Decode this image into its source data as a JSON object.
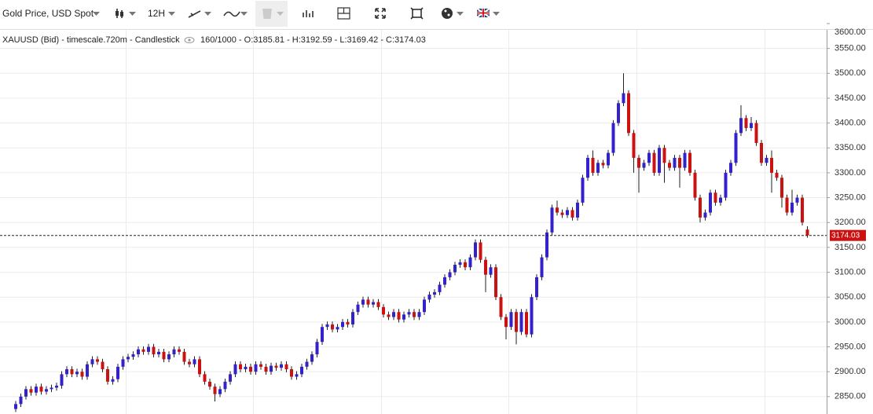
{
  "toolbar": {
    "symbol": "Gold Price, USD Spot",
    "timeframe": "12H"
  },
  "info": {
    "label": "XAUUSD (Bid) - timescale.720m - Candlestick",
    "ohlc": "160/1000 - O:3185.81 - H:3192.59 - L:3169.42 - C:3174.03"
  },
  "chart_data": {
    "type": "candlestick",
    "up_color": "#3322cc",
    "down_color": "#cc1111",
    "wick_color": "#222222",
    "grid": true,
    "ylim": [
      2815,
      3600
    ],
    "yticks": [
      {
        "value": 2850,
        "label": "2850.00"
      },
      {
        "value": 2900,
        "label": "2900.00"
      },
      {
        "value": 2950,
        "label": "2950.00"
      },
      {
        "value": 3000,
        "label": "3000.00"
      },
      {
        "value": 3050,
        "label": "3050.00"
      },
      {
        "value": 3100,
        "label": "3100.00"
      },
      {
        "value": 3150,
        "label": "3150.00"
      },
      {
        "value": 3200,
        "label": "3200.00"
      },
      {
        "value": 3250,
        "label": "3250.00"
      },
      {
        "value": 3300,
        "label": "3300.00"
      },
      {
        "value": 3350,
        "label": "3350.00"
      },
      {
        "value": 3400,
        "label": "3400.00"
      },
      {
        "value": 3450,
        "label": "3450.00"
      },
      {
        "value": 3500,
        "label": "3500.00"
      },
      {
        "value": 3550,
        "label": "3550.00"
      },
      {
        "value": 3600,
        "label": "3600.00"
      }
    ],
    "open": [
      2825,
      2835,
      2850,
      2865,
      2858,
      2870,
      2860,
      2865,
      2868,
      2872,
      2895,
      2905,
      2895,
      2900,
      2890,
      2915,
      2925,
      2920,
      2905,
      2880,
      2885,
      2910,
      2925,
      2930,
      2935,
      2945,
      2940,
      2950,
      2935,
      2940,
      2925,
      2935,
      2945,
      2940,
      2920,
      2915,
      2925,
      2895,
      2880,
      2870,
      2855,
      2865,
      2880,
      2895,
      2915,
      2905,
      2910,
      2900,
      2915,
      2910,
      2900,
      2912,
      2908,
      2915,
      2905,
      2890,
      2895,
      2910,
      2920,
      2935,
      2960,
      2990,
      2995,
      2985,
      2990,
      3000,
      2995,
      3020,
      3035,
      3045,
      3035,
      3040,
      3030,
      3015,
      3010,
      3020,
      3005,
      3015,
      3020,
      3010,
      3020,
      3045,
      3055,
      3060,
      3075,
      3090,
      3100,
      3115,
      3120,
      3110,
      3130,
      3160,
      3125,
      3095,
      3110,
      3050,
      3010,
      2990,
      3020,
      2980,
      3020,
      2975,
      3050,
      3090,
      3130,
      3180,
      3230,
      3220,
      3215,
      3225,
      3210,
      3240,
      3290,
      3330,
      3300,
      3320,
      3315,
      3340,
      3400,
      3440,
      3460,
      3380,
      3330,
      3310,
      3320,
      3340,
      3300,
      3350,
      3320,
      3310,
      3330,
      3310,
      3340,
      3300,
      3250,
      3210,
      3220,
      3260,
      3240,
      3250,
      3300,
      3320,
      3380,
      3410,
      3390,
      3400,
      3360,
      3320,
      3330,
      3300,
      3290,
      3250,
      3220,
      3240,
      3250,
      3185.81
    ],
    "high": [
      2841,
      2856,
      2871,
      2871,
      2876,
      2876,
      2871,
      2874,
      2878,
      2901,
      2911,
      2911,
      2906,
      2906,
      2921,
      2931,
      2931,
      2926,
      2911,
      2891,
      2916,
      2931,
      2936,
      2941,
      2951,
      2951,
      2956,
      2956,
      2946,
      2946,
      2941,
      2951,
      2951,
      2946,
      2926,
      2931,
      2931,
      2901,
      2886,
      2876,
      2871,
      2886,
      2901,
      2921,
      2921,
      2916,
      2916,
      2921,
      2921,
      2916,
      2918,
      2918,
      2921,
      2921,
      2911,
      2901,
      2916,
      2926,
      2941,
      2966,
      2996,
      3001,
      3001,
      2996,
      3006,
      3006,
      3026,
      3041,
      3051,
      3051,
      3046,
      3046,
      3036,
      3021,
      3026,
      3026,
      3021,
      3026,
      3026,
      3026,
      3051,
      3061,
      3066,
      3081,
      3096,
      3106,
      3121,
      3126,
      3126,
      3136,
      3166,
      3166,
      3131,
      3116,
      3116,
      3056,
      3016,
      3026,
      3026,
      3026,
      3026,
      3056,
      3096,
      3136,
      3186,
      3236,
      3244,
      3226,
      3231,
      3231,
      3246,
      3296,
      3336,
      3345,
      3326,
      3326,
      3346,
      3406,
      3446,
      3500,
      3466,
      3386,
      3336,
      3326,
      3346,
      3346,
      3356,
      3356,
      3326,
      3336,
      3336,
      3346,
      3346,
      3306,
      3256,
      3226,
      3266,
      3266,
      3256,
      3306,
      3326,
      3386,
      3436,
      3416,
      3412,
      3406,
      3366,
      3336,
      3345,
      3306,
      3296,
      3256,
      3266,
      3256,
      3256,
      3192.59
    ],
    "low": [
      2819,
      2829,
      2844,
      2852,
      2852,
      2854,
      2854,
      2859,
      2862,
      2866,
      2889,
      2889,
      2889,
      2884,
      2884,
      2909,
      2914,
      2899,
      2874,
      2874,
      2879,
      2904,
      2919,
      2924,
      2929,
      2934,
      2934,
      2929,
      2929,
      2919,
      2919,
      2929,
      2934,
      2914,
      2909,
      2909,
      2889,
      2874,
      2864,
      2840,
      2849,
      2859,
      2874,
      2889,
      2899,
      2899,
      2894,
      2894,
      2904,
      2894,
      2894,
      2902,
      2902,
      2899,
      2884,
      2884,
      2889,
      2904,
      2914,
      2929,
      2954,
      2984,
      2979,
      2979,
      2984,
      2989,
      2989,
      3014,
      3029,
      3029,
      3029,
      3024,
      3009,
      3004,
      3004,
      2999,
      2999,
      3009,
      3004,
      3004,
      3014,
      3039,
      3049,
      3054,
      3069,
      3084,
      3094,
      3109,
      3104,
      3104,
      3124,
      3119,
      3060,
      3089,
      3044,
      3004,
      2965,
      2984,
      2955,
      2974,
      2969,
      2969,
      3044,
      3084,
      3124,
      3174,
      3214,
      3209,
      3209,
      3204,
      3204,
      3234,
      3284,
      3294,
      3294,
      3309,
      3309,
      3334,
      3394,
      3434,
      3374,
      3300,
      3260,
      3304,
      3314,
      3294,
      3294,
      3280,
      3304,
      3304,
      3270,
      3304,
      3294,
      3244,
      3200,
      3204,
      3214,
      3234,
      3234,
      3244,
      3294,
      3314,
      3374,
      3384,
      3384,
      3354,
      3314,
      3314,
      3260,
      3284,
      3230,
      3214,
      3214,
      3234,
      3194,
      3169.42
    ],
    "close": [
      2835,
      2850,
      2865,
      2858,
      2870,
      2860,
      2865,
      2868,
      2872,
      2895,
      2905,
      2895,
      2900,
      2890,
      2915,
      2925,
      2920,
      2905,
      2880,
      2885,
      2910,
      2925,
      2930,
      2935,
      2945,
      2940,
      2950,
      2935,
      2940,
      2925,
      2935,
      2945,
      2940,
      2920,
      2915,
      2925,
      2895,
      2880,
      2870,
      2855,
      2865,
      2880,
      2895,
      2915,
      2905,
      2910,
      2900,
      2915,
      2910,
      2900,
      2912,
      2908,
      2915,
      2905,
      2890,
      2895,
      2910,
      2920,
      2935,
      2960,
      2990,
      2995,
      2985,
      2990,
      3000,
      2995,
      3020,
      3035,
      3045,
      3035,
      3040,
      3030,
      3015,
      3010,
      3020,
      3005,
      3015,
      3020,
      3010,
      3020,
      3045,
      3055,
      3060,
      3075,
      3090,
      3100,
      3115,
      3120,
      3110,
      3130,
      3160,
      3125,
      3095,
      3110,
      3050,
      3010,
      2990,
      3020,
      2980,
      3020,
      2975,
      3050,
      3090,
      3130,
      3180,
      3230,
      3220,
      3215,
      3225,
      3210,
      3240,
      3290,
      3330,
      3300,
      3320,
      3315,
      3340,
      3400,
      3440,
      3460,
      3380,
      3330,
      3310,
      3320,
      3340,
      3300,
      3350,
      3320,
      3310,
      3330,
      3310,
      3340,
      3300,
      3250,
      3210,
      3220,
      3260,
      3240,
      3250,
      3300,
      3320,
      3380,
      3410,
      3390,
      3400,
      3360,
      3320,
      3330,
      3300,
      3290,
      3250,
      3220,
      3240,
      3250,
      3200,
      3174.03
    ]
  }
}
